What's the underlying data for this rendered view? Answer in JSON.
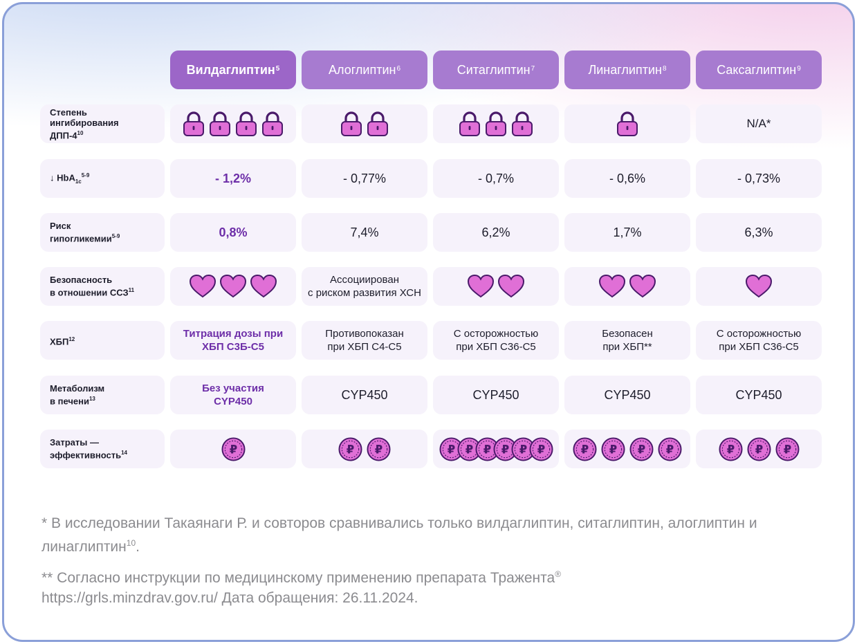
{
  "headers": [
    {
      "name": "Вилдаглиптин",
      "ref": "5"
    },
    {
      "name": "Алоглиптин",
      "ref": "6"
    },
    {
      "name": "Ситаглиптин",
      "ref": "7"
    },
    {
      "name": "Линаглиптин",
      "ref": "8"
    },
    {
      "name": "Саксаглиптин",
      "ref": "9"
    }
  ],
  "rows": {
    "inhibition": {
      "label": [
        "Степень",
        "ингибирования",
        "ДПП-4"
      ],
      "ref": "10",
      "locks": [
        4,
        2,
        3,
        1,
        0
      ],
      "na_text": "N/A*"
    },
    "hba1c": {
      "label_prefix": "↓ HbA",
      "label_sub": "1c",
      "ref": "5-9",
      "values": [
        "- 1,2%",
        "- 0,77%",
        "- 0,7%",
        "- 0,6%",
        "- 0,73%"
      ]
    },
    "hypo": {
      "label": [
        "Риск",
        "гипогликемии"
      ],
      "ref": "5-9",
      "values": [
        "0,8%",
        "7,4%",
        "6,2%",
        "1,7%",
        "6,3%"
      ]
    },
    "cv": {
      "label": [
        "Безопасность",
        "в отношении ССЗ"
      ],
      "ref": "11",
      "hearts": [
        3,
        0,
        2,
        2,
        1
      ],
      "alo_text": [
        "Ассоциирован",
        "с риском развития ХСН"
      ]
    },
    "ckd": {
      "label": "ХБП",
      "ref": "12",
      "values": [
        [
          "Титрация дозы при",
          "ХБП С3Б-С5"
        ],
        [
          "Противопоказан",
          "при ХБП С4-С5"
        ],
        [
          "С осторожностью",
          "при ХБП С36-С5"
        ],
        [
          "Безопасен",
          "при ХБП**"
        ],
        [
          "С осторожностью",
          "при ХБП С36-С5"
        ]
      ]
    },
    "metab": {
      "label": [
        "Метаболизм",
        "в печени"
      ],
      "ref": "13",
      "values": [
        [
          "Без участия",
          "CYP450"
        ],
        [
          "CYP450"
        ],
        [
          "CYP450"
        ],
        [
          "CYP450"
        ],
        [
          "CYP450"
        ]
      ]
    },
    "cost": {
      "label": [
        "Затраты —",
        "эффективность"
      ],
      "ref": "14",
      "coins": [
        1,
        2,
        6,
        4,
        3
      ],
      "coin_symbol": "₽"
    }
  },
  "footnotes": {
    "n1_text": "* В исследовании Такаянаги Р. и совторов сравнивались только вилдаглиптин, ситаглиптин, алоглиптин и линаглиптин",
    "n1_ref": "10",
    "n1_end": ".",
    "n2_line1": "** Согласно инструкции по медицинскому применению препарата Тражента",
    "n2_mark": "®",
    "n2_line2": "https://grls.minzdrav.gov.ru/ Дата обращения: 26.11.2024."
  },
  "colors": {
    "header": "#a77bd0",
    "header_first": "#9c66c8",
    "cell_bg": "#f6f2fb",
    "highlight_text": "#6d2ea8",
    "icon_fill": "#e06fd6",
    "icon_stroke": "#4a1a6a",
    "border": "#8a9fd8"
  }
}
